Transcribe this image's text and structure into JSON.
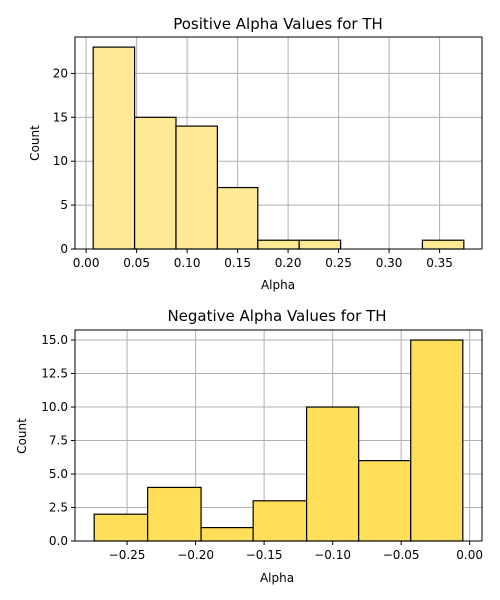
{
  "colors": {
    "positive_fill": "#ffe994",
    "negative_fill": "#ffdf58",
    "bar_edge": "#000000",
    "grid": "#b0b0b0"
  },
  "chart_data": [
    {
      "type": "bar",
      "subtype": "histogram",
      "title": "Positive Alpha Values for TH",
      "xlabel": "Alpha",
      "ylabel": "Count",
      "bins": [
        {
          "start": 0.007,
          "end": 0.048,
          "count": 23
        },
        {
          "start": 0.048,
          "end": 0.089,
          "count": 15
        },
        {
          "start": 0.089,
          "end": 0.13,
          "count": 14
        },
        {
          "start": 0.13,
          "end": 0.17,
          "count": 7
        },
        {
          "start": 0.17,
          "end": 0.211,
          "count": 1
        },
        {
          "start": 0.211,
          "end": 0.252,
          "count": 1
        },
        {
          "start": 0.252,
          "end": 0.292,
          "count": 0
        },
        {
          "start": 0.292,
          "end": 0.333,
          "count": 0
        },
        {
          "start": 0.333,
          "end": 0.374,
          "count": 1
        }
      ],
      "xlim": [
        -0.011,
        0.392
      ],
      "ylim": [
        0,
        24.15
      ],
      "xticks": [
        0.0,
        0.05,
        0.1,
        0.15,
        0.2,
        0.25,
        0.3,
        0.35
      ],
      "xtick_labels": [
        "0.00",
        "0.05",
        "0.10",
        "0.15",
        "0.20",
        "0.25",
        "0.30",
        "0.35"
      ],
      "yticks": [
        0,
        5,
        10,
        15,
        20
      ],
      "ytick_labels": [
        "0",
        "5",
        "10",
        "15",
        "20"
      ],
      "grid": true,
      "color": "#ffe994"
    },
    {
      "type": "bar",
      "subtype": "histogram",
      "title": "Negative Alpha Values for TH",
      "xlabel": "Alpha",
      "ylabel": "Count",
      "bins": [
        {
          "start": -0.274,
          "end": -0.235,
          "count": 2
        },
        {
          "start": -0.235,
          "end": -0.196,
          "count": 4
        },
        {
          "start": -0.196,
          "end": -0.158,
          "count": 1
        },
        {
          "start": -0.158,
          "end": -0.119,
          "count": 3
        },
        {
          "start": -0.119,
          "end": -0.081,
          "count": 10
        },
        {
          "start": -0.081,
          "end": -0.043,
          "count": 6
        },
        {
          "start": -0.043,
          "end": -0.005,
          "count": 15
        }
      ],
      "xlim": [
        -0.288,
        0.009
      ],
      "ylim": [
        0,
        15.75
      ],
      "xticks": [
        -0.25,
        -0.2,
        -0.15,
        -0.1,
        -0.05,
        0.0
      ],
      "xtick_labels": [
        "−0.25",
        "−0.20",
        "−0.15",
        "−0.10",
        "−0.05",
        "0.00"
      ],
      "yticks": [
        0,
        2.5,
        5,
        7.5,
        10,
        12.5,
        15
      ],
      "ytick_labels": [
        "0.0",
        "2.5",
        "5.0",
        "7.5",
        "10.0",
        "12.5",
        "15.0"
      ],
      "grid": true,
      "color": "#ffdf58"
    }
  ]
}
